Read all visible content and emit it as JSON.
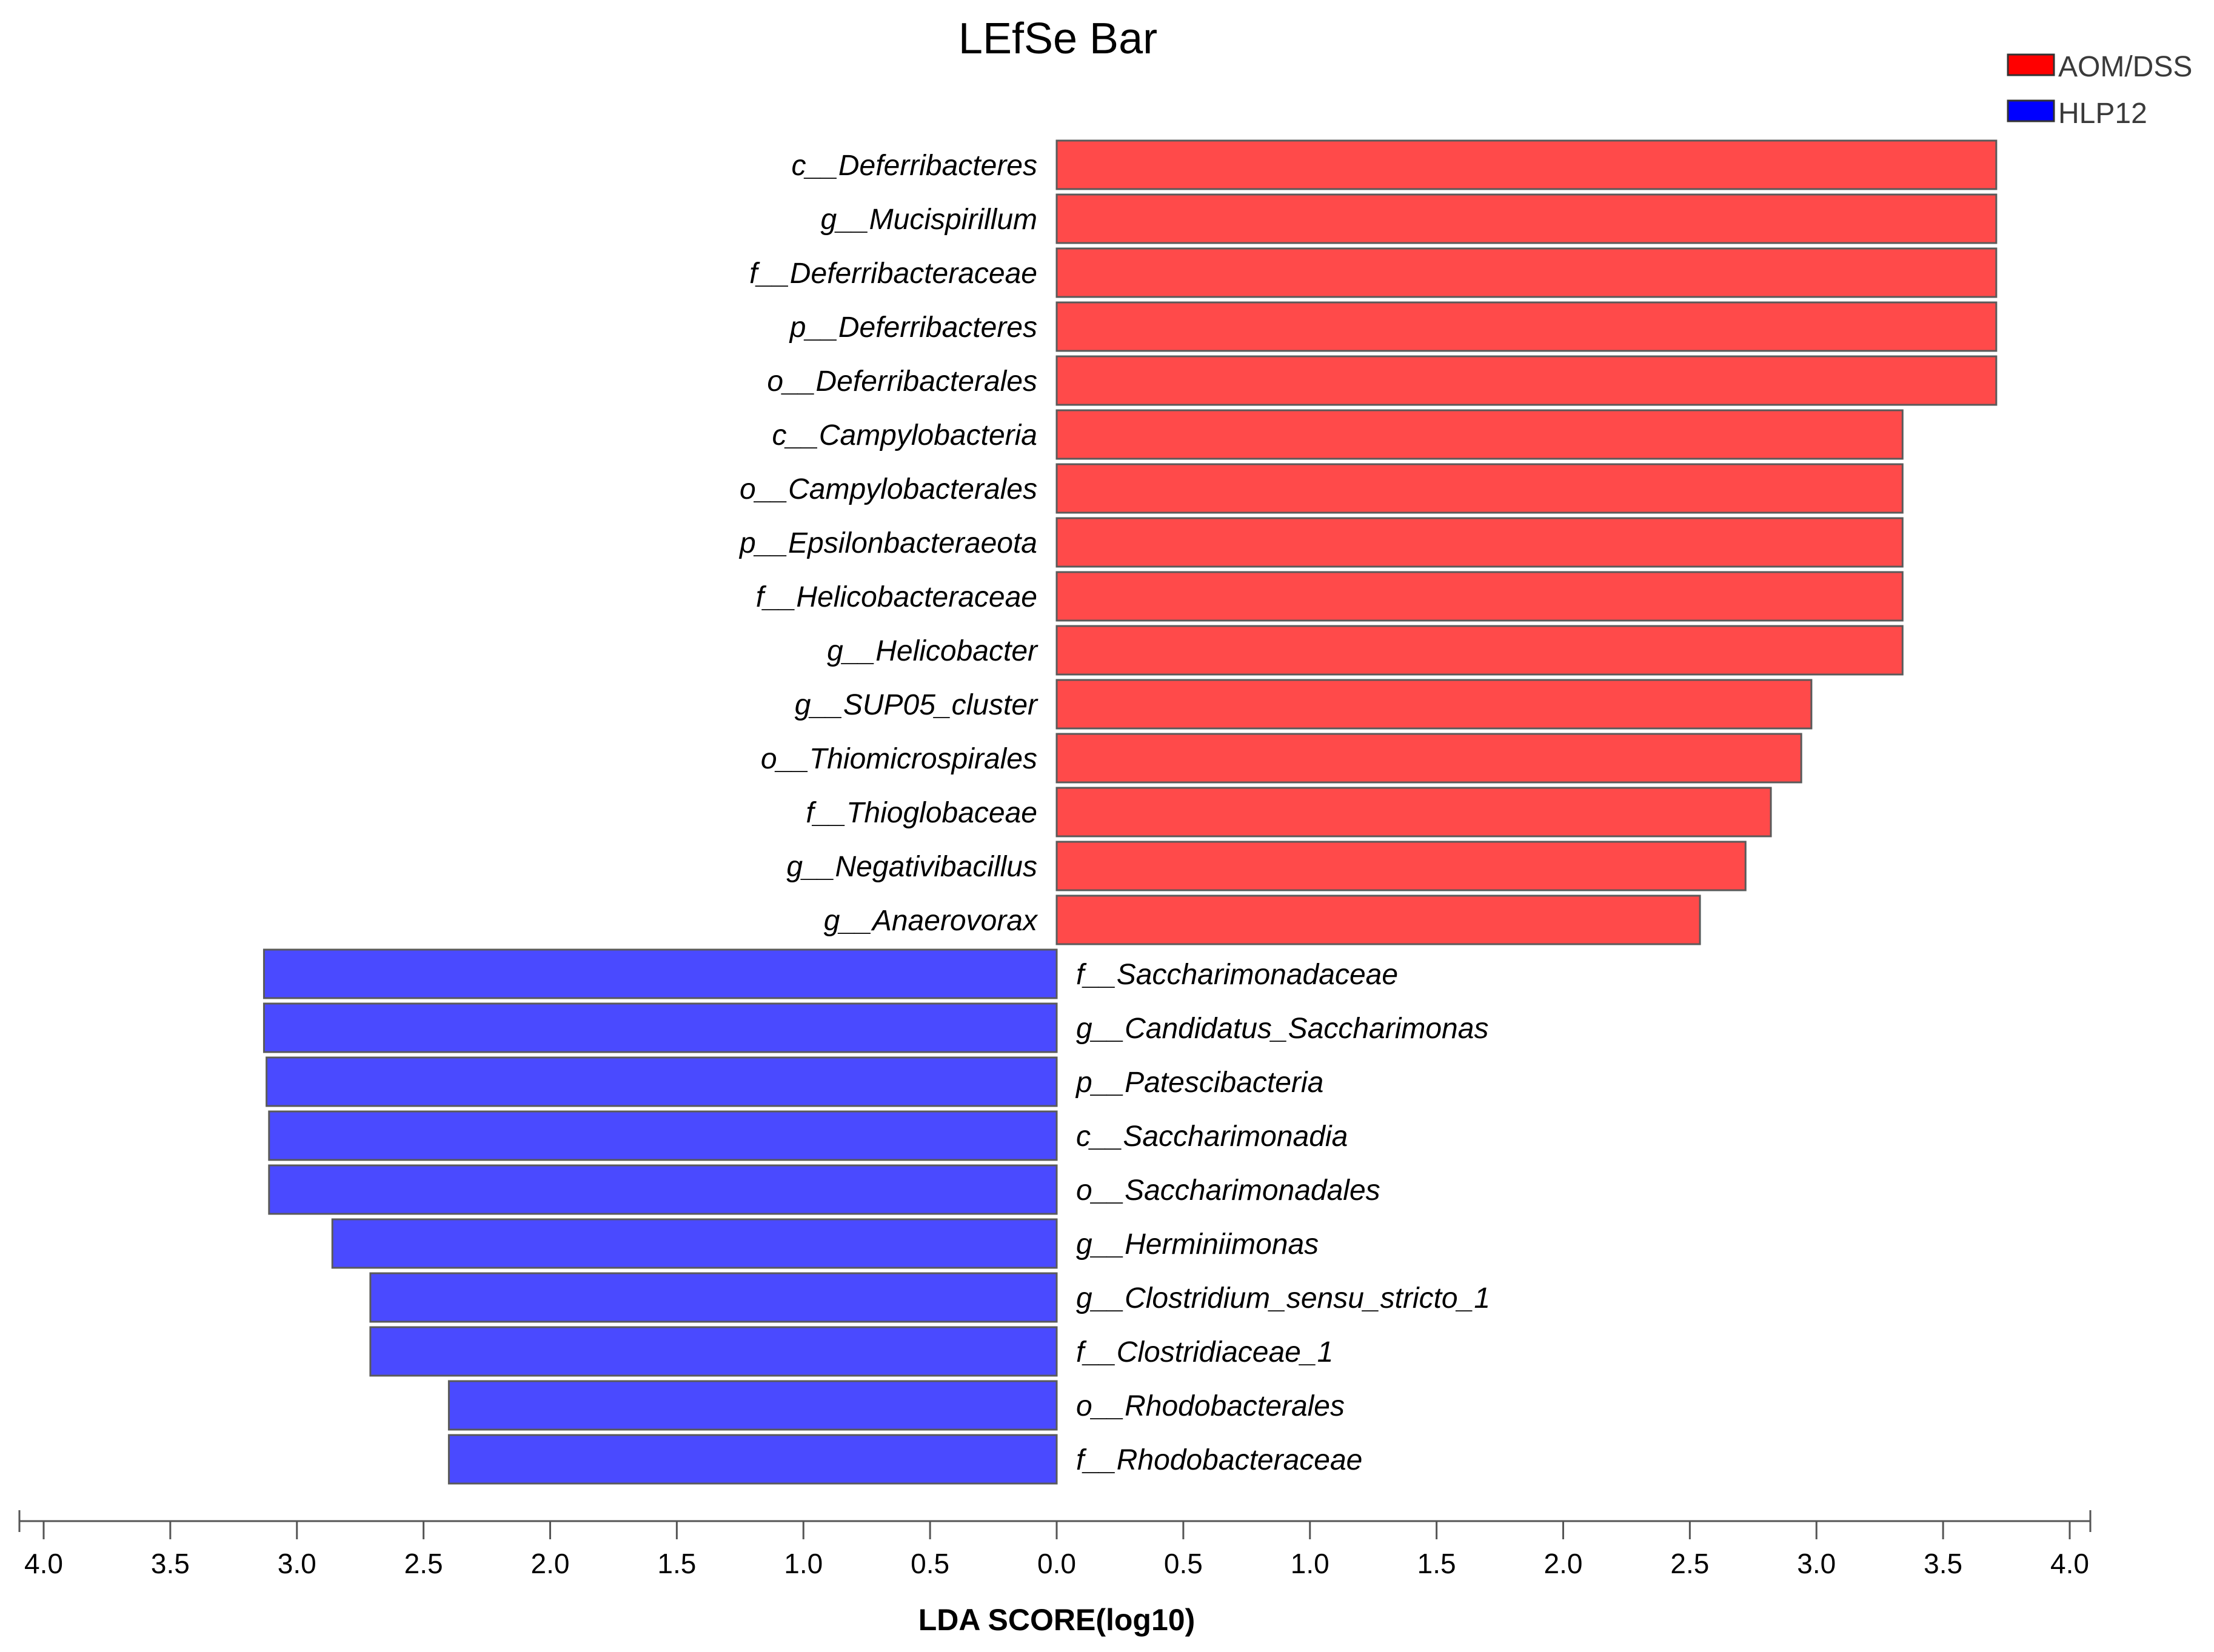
{
  "chart_data": {
    "type": "bar",
    "orientation": "horizontal-diverging",
    "title": "LEfSe Bar",
    "xlabel": "LDA SCORE(log10)",
    "ylabel": "",
    "xlim": [
      -4.0,
      4.0
    ],
    "tick_values": [
      -4.0,
      -3.5,
      -3.0,
      -2.5,
      -2.0,
      -1.5,
      -1.0,
      -0.5,
      0.0,
      0.5,
      1.0,
      1.5,
      2.0,
      2.5,
      3.0,
      3.5,
      4.0
    ],
    "tick_labels": [
      "4.0",
      "3.5",
      "3.0",
      "2.5",
      "2.0",
      "1.5",
      "1.0",
      "0.5",
      "0.0",
      "0.5",
      "1.0",
      "1.5",
      "2.0",
      "2.5",
      "3.0",
      "3.5",
      "4.0"
    ],
    "legend": [
      {
        "name": "AOM/DSS",
        "color": "#ff0000"
      },
      {
        "name": "HLP12",
        "color": "#0000ff"
      }
    ],
    "legend_position": "top-right",
    "series": [
      {
        "name": "AOM/DSS",
        "color": "#ff4a4a",
        "direction": "right",
        "categories": [
          "c__Deferribacteres",
          "g__Mucispirillum",
          "f__Deferribacteraceae",
          "p__Deferribacteres",
          "o__Deferribacterales",
          "c__Campylobacteria",
          "o__Campylobacterales",
          "p__Epsilonbacteraeota",
          "f__Helicobacteraceae",
          "g__Helicobacter",
          "g__SUP05_cluster",
          "o__Thiomicrospirales",
          "f__Thioglobaceae",
          "g__Negativibacillus",
          "g__Anaerovorax"
        ],
        "values": [
          3.71,
          3.71,
          3.71,
          3.71,
          3.71,
          3.34,
          3.34,
          3.34,
          3.34,
          3.34,
          2.98,
          2.94,
          2.82,
          2.72,
          2.54
        ]
      },
      {
        "name": "HLP12",
        "color": "#4a4aff",
        "direction": "left",
        "categories": [
          "f__Saccharimonadaceae",
          "g__Candidatus_Saccharimonas",
          "p__Patescibacteria",
          "c__Saccharimonadia",
          "o__Saccharimonadales",
          "g__Herminiimonas",
          "g__Clostridium_sensu_stricto_1",
          "f__Clostridiaceae_1",
          "o__Rhodobacterales",
          "f__Rhodobacteraceae"
        ],
        "values": [
          3.13,
          3.13,
          3.12,
          3.11,
          3.11,
          2.86,
          2.71,
          2.71,
          2.4,
          2.4
        ]
      }
    ]
  }
}
